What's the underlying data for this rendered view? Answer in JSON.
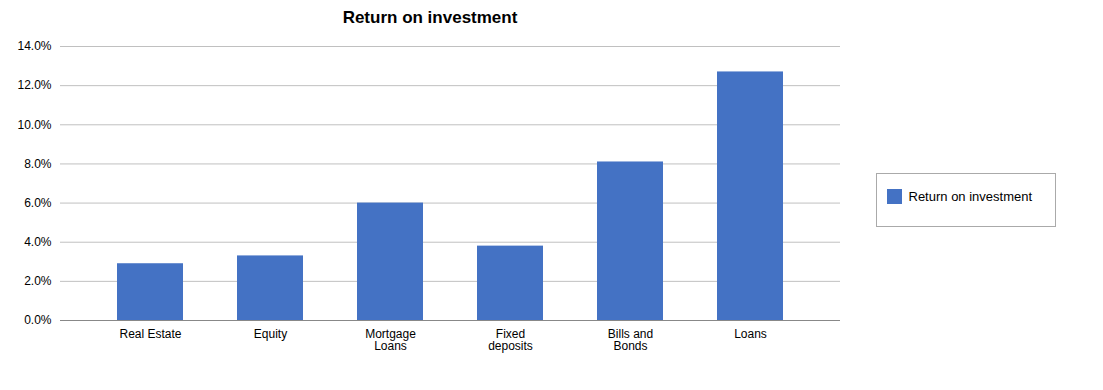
{
  "chart_data": {
    "type": "bar",
    "title": "Return on investment",
    "categories": [
      "Real Estate",
      "Equity",
      "Mortgage\nLoans",
      "Fixed\ndeposits",
      "Bills and\nBonds",
      "Loans"
    ],
    "series": [
      {
        "name": "Return on investment",
        "color": "#4472C4",
        "values": [
          0.029,
          0.033,
          0.06,
          0.038,
          0.081,
          0.127
        ]
      }
    ],
    "ylim": [
      0,
      0.14
    ],
    "yticks": [
      {
        "value": 0.0,
        "label": "0.0%"
      },
      {
        "value": 0.02,
        "label": "2.0%"
      },
      {
        "value": 0.04,
        "label": "4.0%"
      },
      {
        "value": 0.06,
        "label": "6.0%"
      },
      {
        "value": 0.08,
        "label": "8.0%"
      },
      {
        "value": 0.1,
        "label": "10.0%"
      },
      {
        "value": 0.12,
        "label": "12.0%"
      },
      {
        "value": 0.14,
        "label": "14.0%"
      }
    ],
    "grid": true,
    "legend": "right"
  }
}
